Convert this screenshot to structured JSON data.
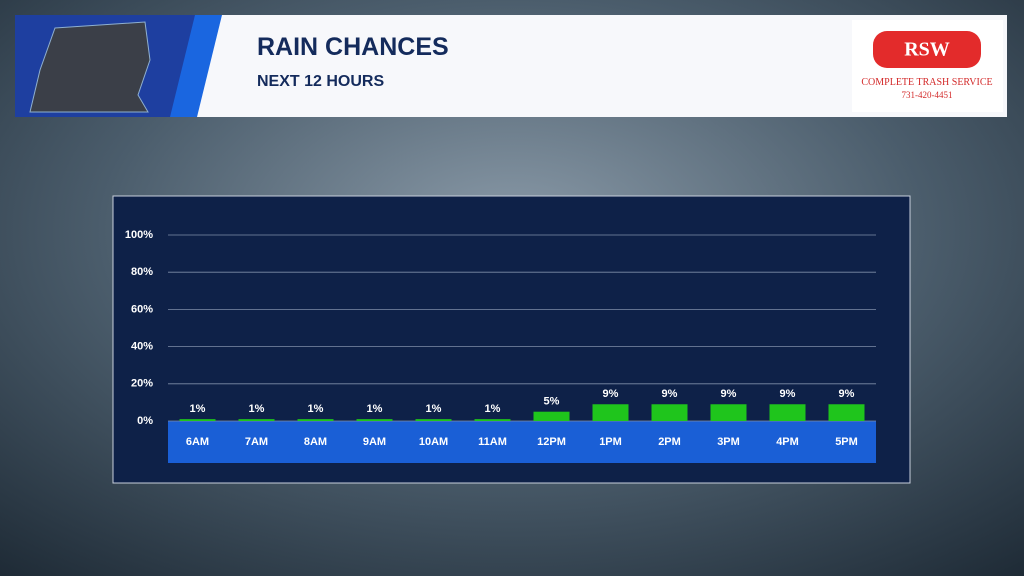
{
  "header": {
    "title": "RAIN CHANCES",
    "subtitle": "NEXT 12 HOURS"
  },
  "sponsor": {
    "name": "RSW",
    "tagline": "COMPLETE TRASH SERVICE",
    "phone": "731-420-4451"
  },
  "chart_data": {
    "type": "bar",
    "categories": [
      "6AM",
      "7AM",
      "8AM",
      "9AM",
      "10AM",
      "11AM",
      "12PM",
      "1PM",
      "2PM",
      "3PM",
      "4PM",
      "5PM"
    ],
    "values": [
      1,
      1,
      1,
      1,
      1,
      1,
      5,
      9,
      9,
      9,
      9,
      9
    ],
    "value_labels": [
      "1%",
      "1%",
      "1%",
      "1%",
      "1%",
      "1%",
      "5%",
      "9%",
      "9%",
      "9%",
      "9%",
      "9%"
    ],
    "color": "#1fc51c",
    "ylim": [
      0,
      100
    ],
    "yticks": [
      {
        "value": 0,
        "label": "0%"
      },
      {
        "value": 20,
        "label": "20%"
      },
      {
        "value": 40,
        "label": "40%"
      },
      {
        "value": 60,
        "label": "60%"
      },
      {
        "value": 80,
        "label": "80%"
      },
      {
        "value": 100,
        "label": "100%"
      }
    ],
    "grid": true
  }
}
